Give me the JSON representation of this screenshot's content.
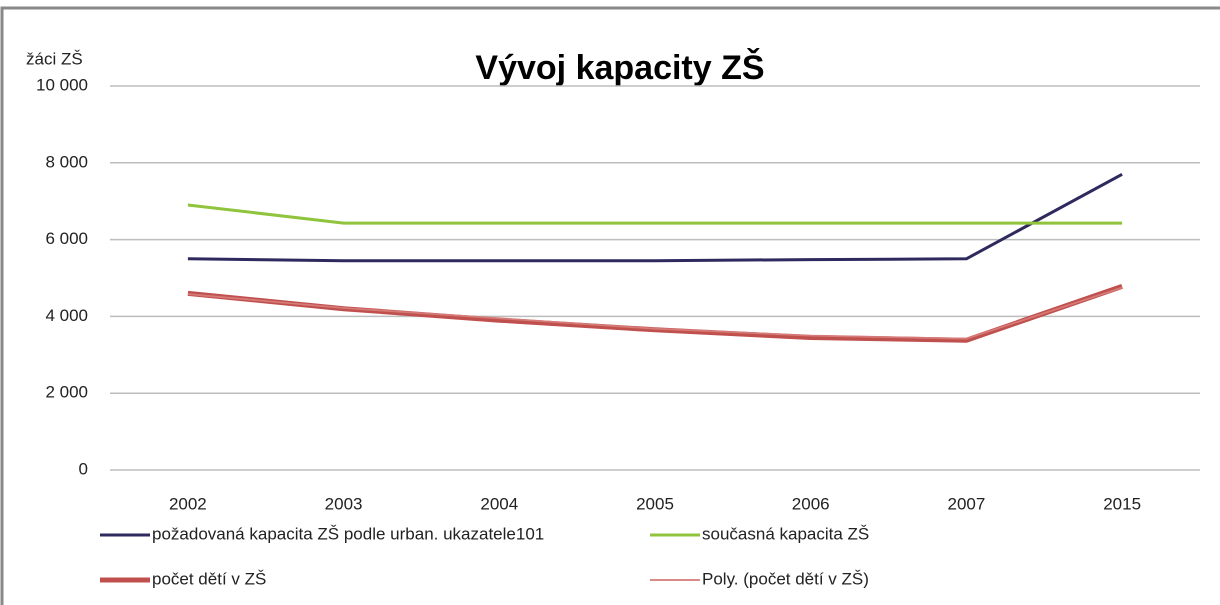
{
  "chart_data": {
    "type": "line",
    "title": "Vývoj kapacity ZŠ",
    "y_label": "žáci ZŠ",
    "categories": [
      "2002",
      "2003",
      "2004",
      "2005",
      "2006",
      "2007",
      "2015"
    ],
    "series": [
      {
        "name": "požadovaná kapacita ZŠ podle urban. ukazatele101",
        "color": "#2e2a5e",
        "values": [
          5500,
          5450,
          5450,
          5450,
          5480,
          5500,
          7700
        ]
      },
      {
        "name": "současná kapacita ZŠ",
        "color": "#8fc43c",
        "values": [
          6900,
          6430,
          6430,
          6430,
          6430,
          6430,
          6430
        ]
      },
      {
        "name": "počet dětí v ZŠ",
        "color": "#c0504d",
        "values": [
          4600,
          4200,
          3900,
          3650,
          3450,
          3380,
          4780
        ]
      },
      {
        "name": "Poly. (počet dětí v ZŠ)",
        "color": "#d57a77",
        "values": [
          4580,
          4220,
          3950,
          3680,
          3500,
          3420,
          4750
        ]
      }
    ],
    "ylim": [
      0,
      10000
    ],
    "yticks": [
      0,
      {
        "value": 2000,
        "label": "2 000"
      },
      {
        "value": 4000,
        "label": "4 000"
      },
      {
        "value": 6000,
        "label": "6 000"
      },
      {
        "value": 8000,
        "label": "8 000"
      },
      {
        "value": 10000,
        "label": "10 000"
      }
    ],
    "grid": true
  }
}
